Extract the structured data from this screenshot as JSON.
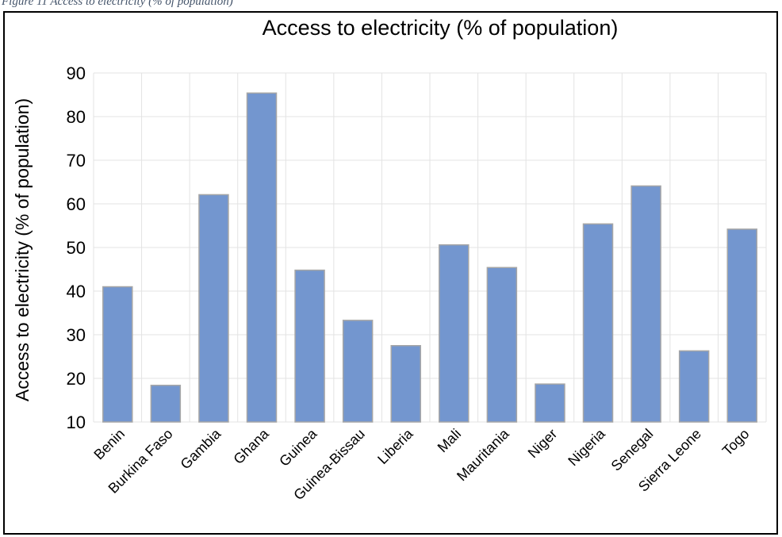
{
  "caption": "Figure 11 Access to electricity (% of population)",
  "chart_data": {
    "type": "bar",
    "title": "Access to electricity (% of population)",
    "xlabel": "",
    "ylabel": "Access to electricity (% of population)",
    "ylim": [
      10,
      90
    ],
    "yticks": [
      10,
      20,
      30,
      40,
      50,
      60,
      70,
      80,
      90
    ],
    "grid": "vertical and horizontal",
    "legend": "none",
    "bar_color": "#7396cf",
    "bar_edge_color": "#a6a6a6",
    "categories": [
      "Benin",
      "Burkina Faso",
      "Gambia",
      "Ghana",
      "Guinea",
      "Guinea-Bissau",
      "Liberia",
      "Mali",
      "Mauritania",
      "Niger",
      "Nigeria",
      "Senegal",
      "Sierra Leone",
      "Togo"
    ],
    "values": [
      41,
      18.4,
      62.1,
      85.4,
      44.8,
      33.3,
      27.5,
      50.6,
      45.4,
      18.7,
      55.4,
      64.1,
      26.3,
      54.2
    ]
  }
}
